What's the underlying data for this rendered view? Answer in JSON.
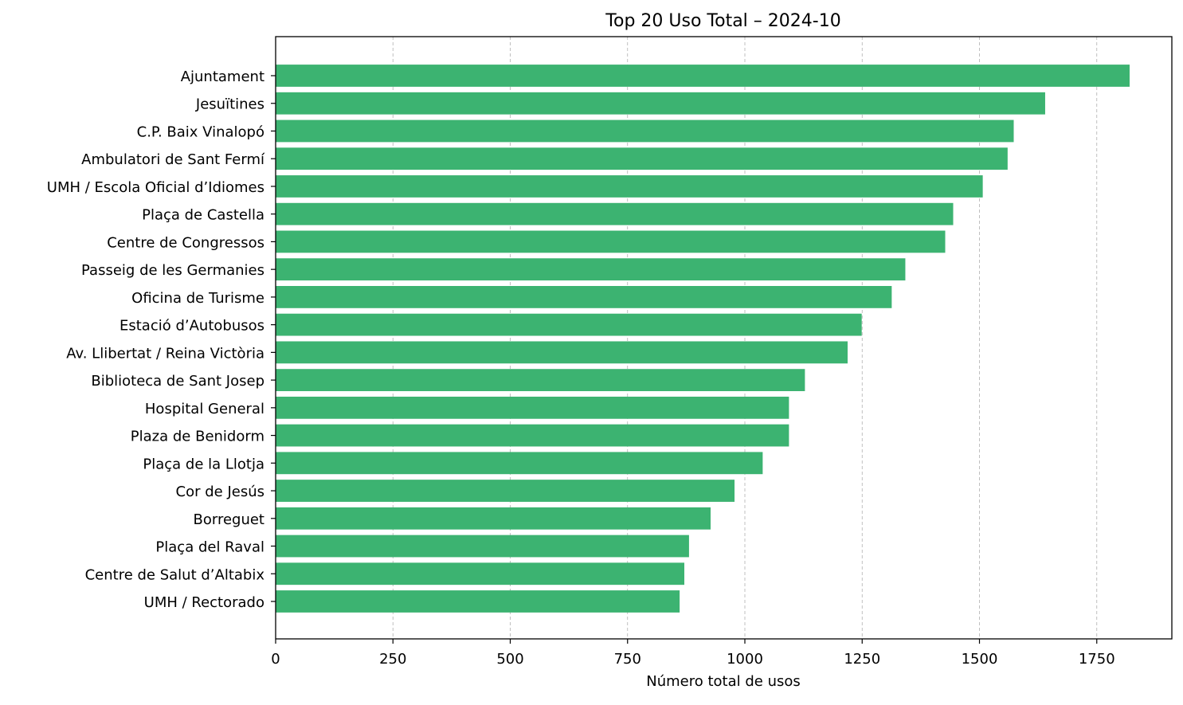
{
  "chart_data": {
    "type": "bar",
    "orientation": "horizontal",
    "title": "Top 20 Uso Total – 2024-10",
    "xlabel": "Número total de usos",
    "ylabel": "",
    "xlim": [
      0,
      1910
    ],
    "xticks": [
      0,
      250,
      500,
      750,
      1000,
      1250,
      1500,
      1750
    ],
    "grid": "x-dashed",
    "bar_color": "#3cb371",
    "categories": [
      "Ajuntament",
      "Jesuïtines",
      "C.P. Baix Vinalopó",
      "Ambulatori de Sant Fermí",
      "UMH / Escola Oficial d’Idiomes",
      "Plaça de Castella",
      "Centre de Congressos",
      "Passeig de les Germanies",
      "Oficina de Turisme",
      "Estació d’Autobusos",
      "Av. Llibertat / Reina Victòria",
      "Biblioteca de Sant Josep",
      "Hospital General",
      "Plaza de Benidorm",
      "Plaça de la Llotja",
      "Cor de Jesús",
      "Borreguet",
      "Plaça del Raval",
      "Centre de Salut d’Altabix",
      "UMH / Rectorado"
    ],
    "values": [
      1820,
      1640,
      1573,
      1560,
      1507,
      1444,
      1427,
      1342,
      1313,
      1249,
      1219,
      1128,
      1094,
      1094,
      1038,
      978,
      927,
      881,
      871,
      861
    ]
  }
}
